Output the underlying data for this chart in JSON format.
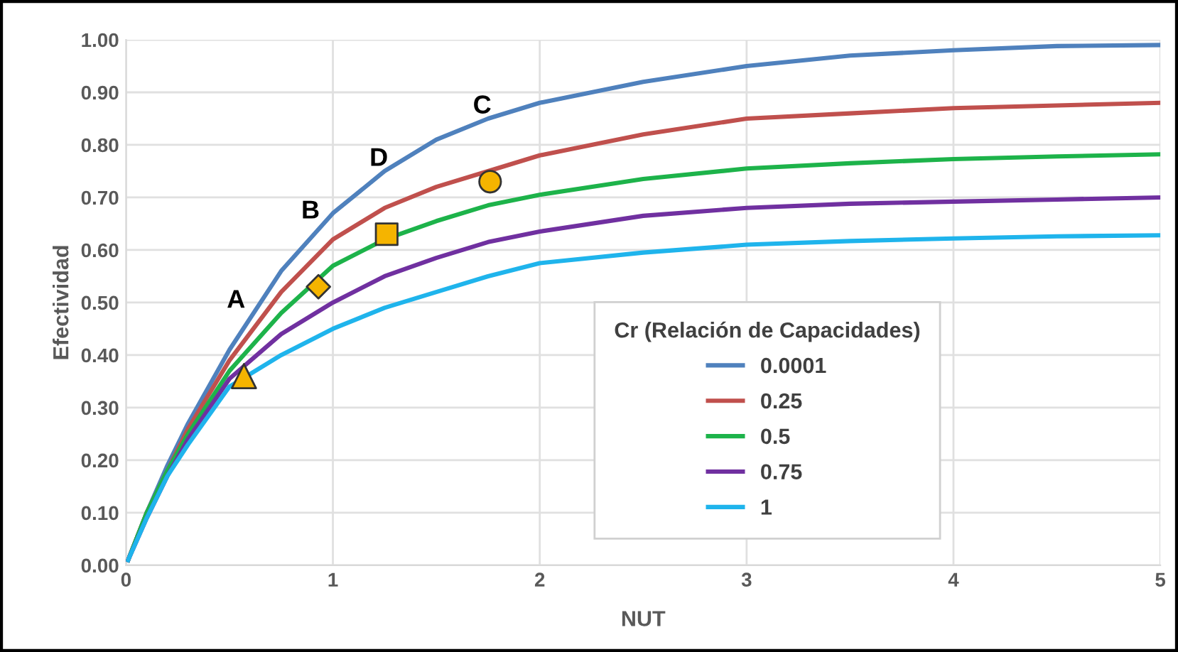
{
  "chart_data": {
    "type": "line",
    "xlabel": "NUT",
    "ylabel": "Efectividad",
    "legend_title": "Cr (Relación de Capacidades)",
    "legend": "bottom",
    "grid": true,
    "marker": "none",
    "line_style": "solid",
    "xlim": [
      0,
      5
    ],
    "xticks": [
      0,
      1,
      2,
      3,
      4,
      5
    ],
    "ylim": [
      0,
      1
    ],
    "yticks": [
      {
        "value": 0,
        "label": "0.00"
      },
      {
        "value": 0.1,
        "label": "0.10"
      },
      {
        "value": 0.2,
        "label": "0.20"
      },
      {
        "value": 0.3,
        "label": "0.30"
      },
      {
        "value": 0.4,
        "label": "0.40"
      },
      {
        "value": 0.5,
        "label": "0.50"
      },
      {
        "value": 0.6,
        "label": "0.60"
      },
      {
        "value": 0.7,
        "label": "0.70"
      },
      {
        "value": 0.8,
        "label": "0.80"
      },
      {
        "value": 0.9,
        "label": "0.90"
      },
      {
        "value": 1,
        "label": "1.00"
      }
    ],
    "x": [
      0.01,
      0.1,
      0.2,
      0.3,
      0.5,
      0.75,
      1,
      1.25,
      1.5,
      1.75,
      2,
      2.5,
      3,
      3.5,
      4,
      4.5,
      5
    ],
    "series": [
      {
        "name": "0.0001",
        "color": "#4f81bd",
        "values": [
          0.01,
          0.1,
          0.19,
          0.27,
          0.41,
          0.56,
          0.67,
          0.75,
          0.81,
          0.85,
          0.88,
          0.92,
          0.95,
          0.97,
          0.98,
          0.988,
          0.99
        ]
      },
      {
        "name": "0.25",
        "color": "#c0504d",
        "values": [
          0.01,
          0.1,
          0.18,
          0.26,
          0.39,
          0.52,
          0.62,
          0.68,
          0.72,
          0.75,
          0.78,
          0.82,
          0.85,
          0.86,
          0.87,
          0.875,
          0.88
        ]
      },
      {
        "name": "0.5",
        "color": "#1db34a",
        "values": [
          0.01,
          0.1,
          0.18,
          0.25,
          0.37,
          0.48,
          0.57,
          0.62,
          0.655,
          0.685,
          0.705,
          0.735,
          0.755,
          0.765,
          0.773,
          0.778,
          0.782
        ]
      },
      {
        "name": "0.75",
        "color": "#7030a0",
        "values": [
          0.01,
          0.09,
          0.17,
          0.24,
          0.355,
          0.44,
          0.5,
          0.55,
          0.585,
          0.615,
          0.635,
          0.665,
          0.68,
          0.688,
          0.692,
          0.696,
          0.7
        ]
      },
      {
        "name": "1",
        "color": "#1fb4ec",
        "values": [
          0.01,
          0.09,
          0.17,
          0.23,
          0.34,
          0.4,
          0.45,
          0.49,
          0.52,
          0.55,
          0.575,
          0.595,
          0.61,
          0.617,
          0.622,
          0.626,
          0.628
        ]
      },
      {
        "type": "scatter",
        "marker": "triangle",
        "color": "#f5b400",
        "x": [
          0.57
        ],
        "values": [
          0.36
        ]
      },
      {
        "type": "scatter",
        "marker": "diamond",
        "color": "#f5b400",
        "x": [
          0.93
        ],
        "values": [
          0.53
        ]
      },
      {
        "type": "scatter",
        "marker": "square",
        "color": "#f5b400",
        "x": [
          1.26
        ],
        "values": [
          0.63
        ]
      },
      {
        "type": "scatter",
        "marker": "circle",
        "color": "#f5b400",
        "x": [
          1.76
        ],
        "values": [
          0.73
        ]
      }
    ],
    "annotations": [
      {
        "text": "A",
        "x": 0.57,
        "y": 0.36
      },
      {
        "text": "B",
        "x": 0.93,
        "y": 0.53
      },
      {
        "text": "D",
        "x": 1.26,
        "y": 0.63
      },
      {
        "text": "C",
        "x": 1.76,
        "y": 0.73
      }
    ]
  }
}
